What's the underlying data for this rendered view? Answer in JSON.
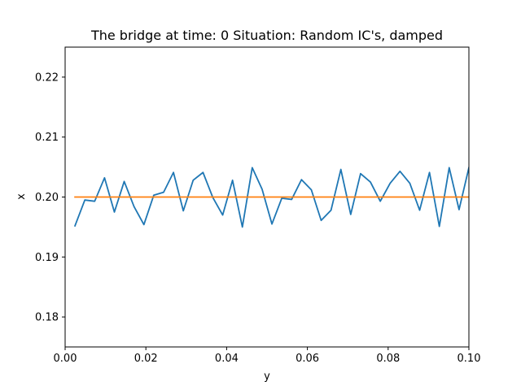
{
  "chart_data": {
    "type": "line",
    "title": "The bridge at time: 0 Situation: Random IC's, damped",
    "xlabel": "y",
    "ylabel": "x",
    "xlim": [
      0.0,
      0.1
    ],
    "ylim": [
      0.175,
      0.225
    ],
    "xticks": [
      0.0,
      0.02,
      0.04,
      0.06,
      0.08,
      0.1
    ],
    "xtick_labels": [
      "0.00",
      "0.02",
      "0.04",
      "0.06",
      "0.08",
      "0.10"
    ],
    "yticks": [
      0.18,
      0.19,
      0.2,
      0.21,
      0.22
    ],
    "ytick_labels": [
      "0.18",
      "0.19",
      "0.20",
      "0.21",
      "0.22"
    ],
    "grid": false,
    "legend": "none",
    "series": [
      {
        "color": "#1f77b4",
        "x": [
          0.00244,
          0.00488,
          0.00732,
          0.00976,
          0.0122,
          0.01463,
          0.01707,
          0.01951,
          0.02195,
          0.02439,
          0.02683,
          0.02927,
          0.03171,
          0.03415,
          0.03659,
          0.03902,
          0.04146,
          0.0439,
          0.04634,
          0.04878,
          0.05122,
          0.05366,
          0.0561,
          0.05854,
          0.06098,
          0.06341,
          0.06585,
          0.06829,
          0.07073,
          0.07317,
          0.07561,
          0.07805,
          0.08049,
          0.08293,
          0.08537,
          0.0878,
          0.09024,
          0.09268,
          0.09512,
          0.09756,
          0.1
        ],
        "values": [
          0.1952,
          0.1995,
          0.1993,
          0.2032,
          0.1975,
          0.2026,
          0.1984,
          0.1954,
          0.2003,
          0.2008,
          0.2041,
          0.1977,
          0.2028,
          0.2041,
          0.1999,
          0.197,
          0.2028,
          0.195,
          0.2049,
          0.2013,
          0.1955,
          0.1998,
          0.1996,
          0.2029,
          0.2012,
          0.1961,
          0.1978,
          0.2046,
          0.1971,
          0.2039,
          0.2025,
          0.1993,
          0.2023,
          0.2043,
          0.2023,
          0.1978,
          0.2041,
          0.1951,
          0.2049,
          0.1979,
          0.2049
        ]
      },
      {
        "color": "#ff7f0e",
        "x": [
          0.00244,
          0.1
        ],
        "values": [
          0.2,
          0.2
        ]
      }
    ]
  }
}
